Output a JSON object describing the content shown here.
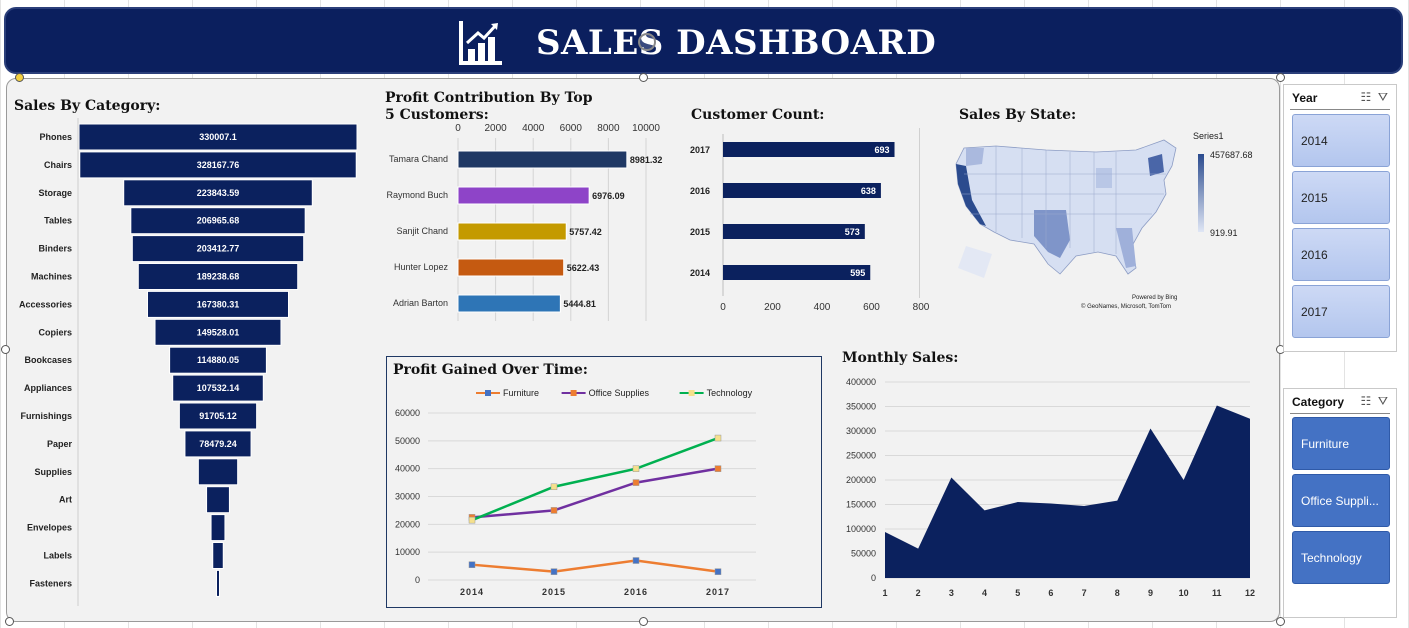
{
  "header": {
    "title": "SALES DASHBOARD",
    "icon": "bar-chart-icon"
  },
  "sales_by_category": {
    "title": "Sales By Category:",
    "items": [
      {
        "label": "Phones",
        "value": "330007.1",
        "v": 330007.1
      },
      {
        "label": "Chairs",
        "value": "328167.76",
        "v": 328167.76
      },
      {
        "label": "Storage",
        "value": "223843.59",
        "v": 223843.59
      },
      {
        "label": "Tables",
        "value": "206965.68",
        "v": 206965.68
      },
      {
        "label": "Binders",
        "value": "203412.77",
        "v": 203412.77
      },
      {
        "label": "Machines",
        "value": "189238.68",
        "v": 189238.68
      },
      {
        "label": "Accessories",
        "value": "167380.31",
        "v": 167380.31
      },
      {
        "label": "Copiers",
        "value": "149528.01",
        "v": 149528.01
      },
      {
        "label": "Bookcases",
        "value": "114880.05",
        "v": 114880.05
      },
      {
        "label": "Appliances",
        "value": "107532.14",
        "v": 107532.14
      },
      {
        "label": "Furnishings",
        "value": "91705.12",
        "v": 91705.12
      },
      {
        "label": "Paper",
        "value": "78479.24",
        "v": 78479.24
      },
      {
        "label": "Supplies",
        "value": "",
        "v": 46673.5
      },
      {
        "label": "Art",
        "value": "",
        "v": 27118.8
      },
      {
        "label": "Envelopes",
        "value": "",
        "v": 16476.4
      },
      {
        "label": "Labels",
        "value": "",
        "v": 12486.3
      },
      {
        "label": "Fasteners",
        "value": "",
        "v": 3024.3
      }
    ]
  },
  "profit_contribution": {
    "title_line1": "Profit Contribution By Top",
    "title_line2": "5 Customers:",
    "ticks": [
      "0",
      "2000",
      "4000",
      "6000",
      "8000",
      "10000"
    ],
    "xmax": 10000,
    "items": [
      {
        "label": "Tamara Chand",
        "value": "8981.32",
        "v": 8981.32,
        "color": "#1f3864"
      },
      {
        "label": "Raymond Buch",
        "value": "6976.09",
        "v": 6976.09,
        "color": "#8e44c8"
      },
      {
        "label": "Sanjit Chand",
        "value": "5757.42",
        "v": 5757.42,
        "color": "#c49a00"
      },
      {
        "label": "Hunter Lopez",
        "value": "5622.43",
        "v": 5622.43,
        "color": "#c55a11"
      },
      {
        "label": "Adrian Barton",
        "value": "5444.81",
        "v": 5444.81,
        "color": "#2e75b6"
      }
    ]
  },
  "customer_count": {
    "title": "Customer Count:",
    "ticks": [
      "0",
      "200",
      "400",
      "600",
      "800"
    ],
    "xmax": 800,
    "items": [
      {
        "label": "2017",
        "value": "693",
        "v": 693
      },
      {
        "label": "2016",
        "value": "638",
        "v": 638
      },
      {
        "label": "2015",
        "value": "573",
        "v": 573
      },
      {
        "label": "2014",
        "value": "595",
        "v": 595
      }
    ]
  },
  "sales_by_state": {
    "title": "Sales By State:",
    "legend_title": "Series1",
    "max_label": "457687.68",
    "min_label": "919.91",
    "powered": "Powered by Bing",
    "credits": "© GeoNames, Microsoft, TomTom"
  },
  "profit_over_time": {
    "title": "Profit Gained Over Time:",
    "x": [
      "2014",
      "2015",
      "2016",
      "2017"
    ],
    "yticks": [
      "0",
      "10000",
      "20000",
      "30000",
      "40000",
      "50000",
      "60000"
    ],
    "ymax": 60000,
    "series": [
      {
        "name": "Furniture",
        "values": [
          5500,
          3000,
          7000,
          3000
        ],
        "color": "#ed7d31",
        "marker": "#4472c4"
      },
      {
        "name": "Office Supplies",
        "values": [
          22500,
          25000,
          35000,
          40000
        ],
        "color": "#7030a0",
        "marker": "#ed7d31"
      },
      {
        "name": "Technology",
        "values": [
          21500,
          33500,
          40000,
          51000
        ],
        "color": "#00b050",
        "marker": "#f5e08c"
      }
    ]
  },
  "monthly_sales": {
    "title": "Monthly Sales:",
    "x": [
      "1",
      "2",
      "3",
      "4",
      "5",
      "6",
      "7",
      "8",
      "9",
      "10",
      "11",
      "12"
    ],
    "values": [
      94000,
      60000,
      205000,
      138000,
      155000,
      152000,
      147000,
      158000,
      305000,
      200000,
      352000,
      325000
    ],
    "yticks": [
      "0",
      "50000",
      "100000",
      "150000",
      "200000",
      "250000",
      "300000",
      "350000",
      "400000"
    ],
    "ymax": 400000
  },
  "chart_data": [
    {
      "type": "bar",
      "title": "Sales By Category:",
      "categories": [
        "Phones",
        "Chairs",
        "Storage",
        "Tables",
        "Binders",
        "Machines",
        "Accessories",
        "Copiers",
        "Bookcases",
        "Appliances",
        "Furnishings",
        "Paper",
        "Supplies",
        "Art",
        "Envelopes",
        "Labels",
        "Fasteners"
      ],
      "values": [
        330007.1,
        328167.76,
        223843.59,
        206965.68,
        203412.77,
        189238.68,
        167380.31,
        149528.01,
        114880.05,
        107532.14,
        91705.12,
        78479.24,
        46673.5,
        27118.8,
        16476.4,
        12486.3,
        3024.3
      ]
    },
    {
      "type": "bar",
      "title": "Profit Contribution By Top 5 Customers:",
      "categories": [
        "Tamara Chand",
        "Raymond Buch",
        "Sanjit Chand",
        "Hunter Lopez",
        "Adrian Barton"
      ],
      "values": [
        8981.32,
        6976.09,
        5757.42,
        5622.43,
        5444.81
      ],
      "xlim": [
        0,
        10000
      ]
    },
    {
      "type": "bar",
      "title": "Customer Count:",
      "categories": [
        "2017",
        "2016",
        "2015",
        "2014"
      ],
      "values": [
        693,
        638,
        573,
        595
      ],
      "xlim": [
        0,
        800
      ]
    },
    {
      "type": "line",
      "title": "Profit Gained Over Time:",
      "x": [
        "2014",
        "2015",
        "2016",
        "2017"
      ],
      "series": [
        {
          "name": "Furniture",
          "values": [
            5500,
            3000,
            7000,
            3000
          ]
        },
        {
          "name": "Office Supplies",
          "values": [
            22500,
            25000,
            35000,
            40000
          ]
        },
        {
          "name": "Technology",
          "values": [
            21500,
            33500,
            40000,
            51000
          ]
        }
      ],
      "ylim": [
        0,
        60000
      ],
      "legend": "top"
    },
    {
      "type": "area",
      "title": "Monthly Sales:",
      "x": [
        "1",
        "2",
        "3",
        "4",
        "5",
        "6",
        "7",
        "8",
        "9",
        "10",
        "11",
        "12"
      ],
      "values": [
        94000,
        60000,
        205000,
        138000,
        155000,
        152000,
        147000,
        158000,
        305000,
        200000,
        352000,
        325000
      ],
      "ylim": [
        0,
        400000
      ]
    }
  ],
  "slicers": {
    "year": {
      "title": "Year",
      "items": [
        "2014",
        "2015",
        "2016",
        "2017"
      ]
    },
    "category": {
      "title": "Category",
      "items": [
        "Furniture",
        "Office Suppli...",
        "Technology"
      ]
    }
  }
}
